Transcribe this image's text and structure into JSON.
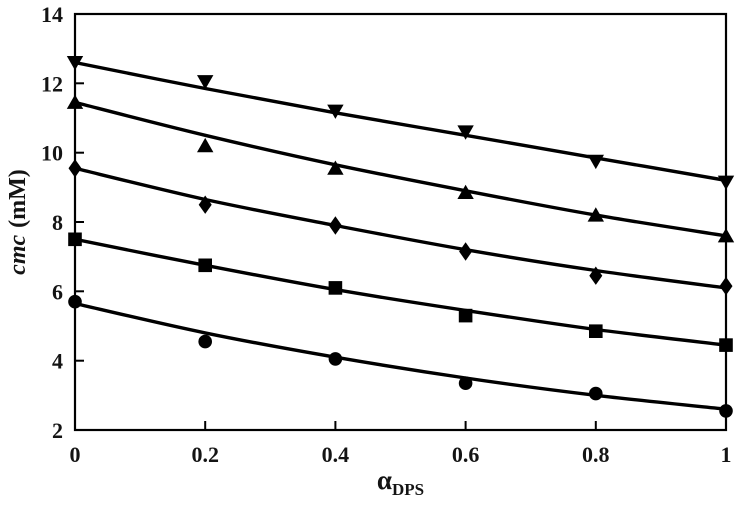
{
  "chart_data": {
    "type": "scatter",
    "title": "",
    "xlabel_base": "α",
    "xlabel_sub": "DPS",
    "ylabel_italic": "cmc",
    "ylabel_rest": "(mM)",
    "xlim": [
      0,
      1
    ],
    "ylim": [
      2,
      14
    ],
    "xticks": [
      0,
      0.2,
      0.4,
      0.6,
      0.8,
      1
    ],
    "xtick_labels": [
      "0",
      "0.2",
      "0.4",
      "0.6",
      "0.8",
      "1"
    ],
    "yticks": [
      2,
      4,
      6,
      8,
      10,
      12,
      14
    ],
    "ytick_labels": [
      "2",
      "4",
      "6",
      "8",
      "10",
      "12",
      "14"
    ],
    "grid": false,
    "legend": "none",
    "marker_color": "#000000",
    "line_color": "#000000",
    "background": "#ffffff",
    "x": [
      0,
      0.2,
      0.4,
      0.6,
      0.8,
      1
    ],
    "series": [
      {
        "name": "series-triangle-down",
        "marker": "triangle-down",
        "values": [
          12.6,
          12.05,
          11.2,
          10.6,
          9.75,
          9.15
        ],
        "curve": [
          12.6,
          11.85,
          11.15,
          10.5,
          9.85,
          9.2
        ]
      },
      {
        "name": "series-triangle-up",
        "marker": "triangle-up",
        "values": [
          11.45,
          10.2,
          9.55,
          8.85,
          8.2,
          7.6
        ],
        "curve": [
          11.45,
          10.5,
          9.65,
          8.9,
          8.2,
          7.6
        ]
      },
      {
        "name": "series-diamond",
        "marker": "diamond",
        "values": [
          9.55,
          8.5,
          7.9,
          7.15,
          6.45,
          6.15
        ],
        "curve": [
          9.55,
          8.65,
          7.9,
          7.2,
          6.6,
          6.1
        ]
      },
      {
        "name": "series-square",
        "marker": "square",
        "values": [
          7.5,
          6.75,
          6.1,
          5.3,
          4.85,
          4.45
        ],
        "curve": [
          7.5,
          6.75,
          6.05,
          5.45,
          4.9,
          4.45
        ]
      },
      {
        "name": "series-circle",
        "marker": "circle",
        "values": [
          5.7,
          4.55,
          4.05,
          3.35,
          3.05,
          2.55
        ],
        "curve": [
          5.65,
          4.8,
          4.1,
          3.5,
          3.0,
          2.6
        ]
      }
    ]
  }
}
